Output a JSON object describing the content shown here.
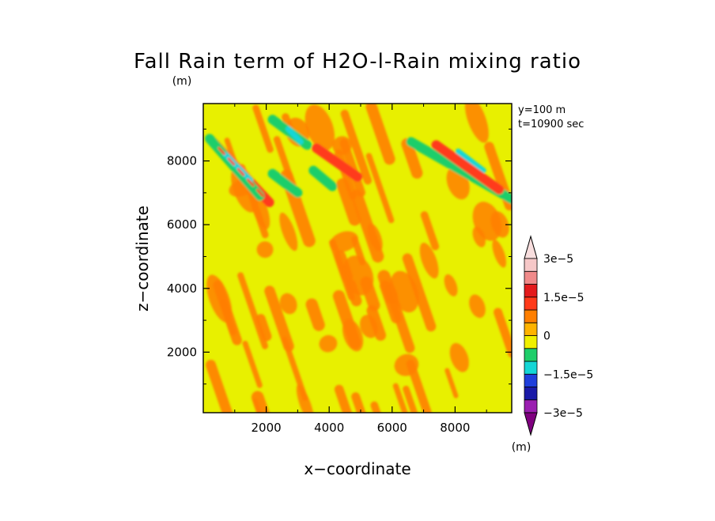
{
  "chart_data": {
    "type": "heatmap",
    "title": "Fall Rain term of H2O-l-Rain mixing ratio",
    "y_unit": "(m)",
    "colorbar_unit": "(m)",
    "xlabel": "x−coordinate",
    "ylabel": "z−coordinate",
    "xlim": [
      0,
      9800
    ],
    "ylim": [
      100,
      9800
    ],
    "xticks": [
      "2000",
      "4000",
      "6000",
      "8000"
    ],
    "yticks": [
      "2000",
      "4000",
      "6000",
      "8000"
    ],
    "annotations": [
      "y=100 m",
      "t=10900 sec"
    ],
    "colorbar": {
      "levels": [
        -3e-05,
        -2.5e-05,
        -2e-05,
        -1.5e-05,
        -1e-05,
        -5e-06,
        0,
        5e-06,
        1e-05,
        1.5e-05,
        2e-05,
        2.5e-05,
        3e-05
      ],
      "colors": [
        "#9b1fb1",
        "#1a1aa8",
        "#1f3fdc",
        "#14d6d6",
        "#1fce6a",
        "#f0f000",
        "#ffb300",
        "#ff7f00",
        "#ff3a1a",
        "#e31a1c",
        "#f08a8a",
        "#f6c8c8"
      ],
      "under_color": "#7f007f",
      "over_color": "#f8dede",
      "tick_labels": [
        "3e−5",
        "1.5e−5",
        "0",
        "−1.5e−5",
        "−3e−5"
      ]
    },
    "field": {
      "background_value": 2e-06,
      "features": [
        {
          "kind": "positive-streak",
          "x": [
            300,
            2100
          ],
          "z": [
            8600,
            6700
          ],
          "value": 1e-05
        },
        {
          "kind": "negative-streak",
          "x": [
            200,
            1800
          ],
          "z": [
            8700,
            6900
          ],
          "value": -1e-05
        },
        {
          "kind": "negative-core",
          "x": [
            700,
            1500
          ],
          "z": [
            8200,
            7400
          ],
          "value": -1.3e-05
        },
        {
          "kind": "negative-streak",
          "x": [
            2200,
            3300
          ],
          "z": [
            9300,
            8500
          ],
          "value": -1e-05
        },
        {
          "kind": "negative-core",
          "x": [
            2700,
            3100
          ],
          "z": [
            9000,
            8600
          ],
          "value": -1.3e-05
        },
        {
          "kind": "positive-streak",
          "x": [
            3600,
            4900
          ],
          "z": [
            8400,
            7500
          ],
          "value": 1e-05
        },
        {
          "kind": "negative-streak",
          "x": [
            3500,
            4100
          ],
          "z": [
            7700,
            7200
          ],
          "value": -1e-05
        },
        {
          "kind": "negative-streak",
          "x": [
            2200,
            3000
          ],
          "z": [
            7600,
            7000
          ],
          "value": -1e-05
        },
        {
          "kind": "negative-streak",
          "x": [
            6600,
            9800
          ],
          "z": [
            8600,
            6800
          ],
          "value": -1e-05
        },
        {
          "kind": "negative-core",
          "x": [
            8100,
            8900
          ],
          "z": [
            8300,
            7700
          ],
          "value": -1.3e-05
        },
        {
          "kind": "positive-streak",
          "x": [
            7400,
            9400
          ],
          "z": [
            8500,
            7100
          ],
          "value": 1e-05
        }
      ]
    }
  }
}
